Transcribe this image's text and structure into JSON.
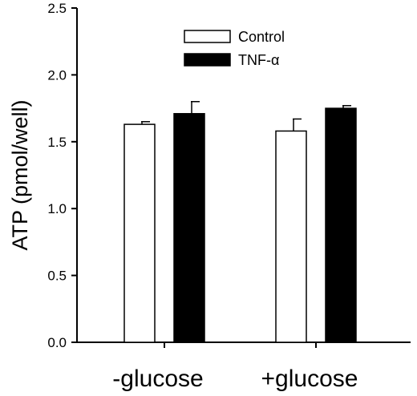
{
  "chart_data": {
    "type": "bar",
    "title": "",
    "xlabel": "",
    "ylabel": "ATP (pmol/well)",
    "ylim": [
      0,
      2.5
    ],
    "yticks": [
      "0.0",
      "0.5",
      "1.0",
      "1.5",
      "2.0",
      "2.5"
    ],
    "categories": [
      "-glucose",
      "+glucose"
    ],
    "series": [
      {
        "name": "Control",
        "values": [
          1.63,
          1.58
        ],
        "errors": [
          0.02,
          0.09
        ],
        "color": "#ffffff"
      },
      {
        "name": "TNF-α",
        "values": [
          1.71,
          1.75
        ],
        "errors": [
          0.09,
          0.02
        ],
        "color": "#000000"
      }
    ],
    "legend_position": "top-center",
    "grid": false
  }
}
